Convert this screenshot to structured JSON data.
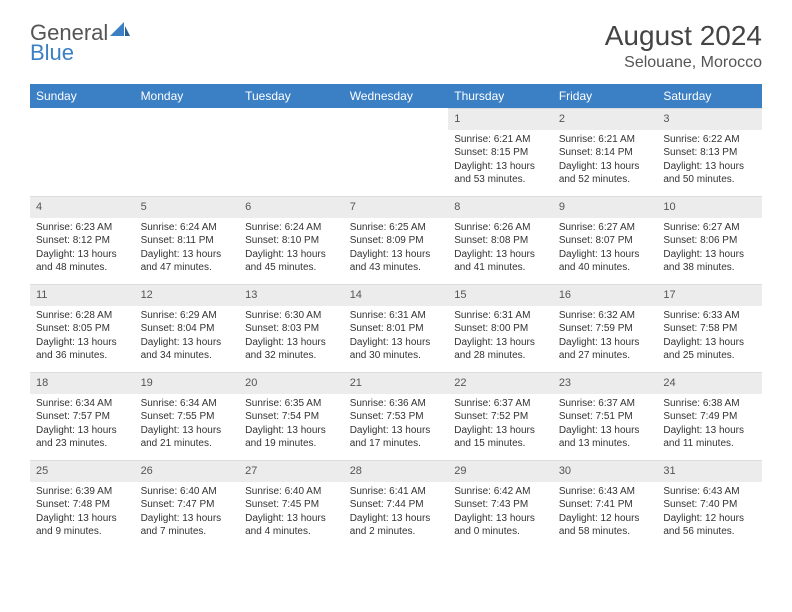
{
  "brand": {
    "word1": "General",
    "word2": "Blue"
  },
  "title": {
    "month": "August 2024",
    "location": "Selouane, Morocco"
  },
  "colors": {
    "header_bg": "#3b7fc4",
    "header_text": "#ffffff",
    "daynum_bg": "#ececec",
    "text": "#333333",
    "page_bg": "#ffffff"
  },
  "weekdays": [
    "Sunday",
    "Monday",
    "Tuesday",
    "Wednesday",
    "Thursday",
    "Friday",
    "Saturday"
  ],
  "weeks": [
    [
      null,
      null,
      null,
      null,
      {
        "n": "1",
        "sunrise": "Sunrise: 6:21 AM",
        "sunset": "Sunset: 8:15 PM",
        "daylight": "Daylight: 13 hours and 53 minutes."
      },
      {
        "n": "2",
        "sunrise": "Sunrise: 6:21 AM",
        "sunset": "Sunset: 8:14 PM",
        "daylight": "Daylight: 13 hours and 52 minutes."
      },
      {
        "n": "3",
        "sunrise": "Sunrise: 6:22 AM",
        "sunset": "Sunset: 8:13 PM",
        "daylight": "Daylight: 13 hours and 50 minutes."
      }
    ],
    [
      {
        "n": "4",
        "sunrise": "Sunrise: 6:23 AM",
        "sunset": "Sunset: 8:12 PM",
        "daylight": "Daylight: 13 hours and 48 minutes."
      },
      {
        "n": "5",
        "sunrise": "Sunrise: 6:24 AM",
        "sunset": "Sunset: 8:11 PM",
        "daylight": "Daylight: 13 hours and 47 minutes."
      },
      {
        "n": "6",
        "sunrise": "Sunrise: 6:24 AM",
        "sunset": "Sunset: 8:10 PM",
        "daylight": "Daylight: 13 hours and 45 minutes."
      },
      {
        "n": "7",
        "sunrise": "Sunrise: 6:25 AM",
        "sunset": "Sunset: 8:09 PM",
        "daylight": "Daylight: 13 hours and 43 minutes."
      },
      {
        "n": "8",
        "sunrise": "Sunrise: 6:26 AM",
        "sunset": "Sunset: 8:08 PM",
        "daylight": "Daylight: 13 hours and 41 minutes."
      },
      {
        "n": "9",
        "sunrise": "Sunrise: 6:27 AM",
        "sunset": "Sunset: 8:07 PM",
        "daylight": "Daylight: 13 hours and 40 minutes."
      },
      {
        "n": "10",
        "sunrise": "Sunrise: 6:27 AM",
        "sunset": "Sunset: 8:06 PM",
        "daylight": "Daylight: 13 hours and 38 minutes."
      }
    ],
    [
      {
        "n": "11",
        "sunrise": "Sunrise: 6:28 AM",
        "sunset": "Sunset: 8:05 PM",
        "daylight": "Daylight: 13 hours and 36 minutes."
      },
      {
        "n": "12",
        "sunrise": "Sunrise: 6:29 AM",
        "sunset": "Sunset: 8:04 PM",
        "daylight": "Daylight: 13 hours and 34 minutes."
      },
      {
        "n": "13",
        "sunrise": "Sunrise: 6:30 AM",
        "sunset": "Sunset: 8:03 PM",
        "daylight": "Daylight: 13 hours and 32 minutes."
      },
      {
        "n": "14",
        "sunrise": "Sunrise: 6:31 AM",
        "sunset": "Sunset: 8:01 PM",
        "daylight": "Daylight: 13 hours and 30 minutes."
      },
      {
        "n": "15",
        "sunrise": "Sunrise: 6:31 AM",
        "sunset": "Sunset: 8:00 PM",
        "daylight": "Daylight: 13 hours and 28 minutes."
      },
      {
        "n": "16",
        "sunrise": "Sunrise: 6:32 AM",
        "sunset": "Sunset: 7:59 PM",
        "daylight": "Daylight: 13 hours and 27 minutes."
      },
      {
        "n": "17",
        "sunrise": "Sunrise: 6:33 AM",
        "sunset": "Sunset: 7:58 PM",
        "daylight": "Daylight: 13 hours and 25 minutes."
      }
    ],
    [
      {
        "n": "18",
        "sunrise": "Sunrise: 6:34 AM",
        "sunset": "Sunset: 7:57 PM",
        "daylight": "Daylight: 13 hours and 23 minutes."
      },
      {
        "n": "19",
        "sunrise": "Sunrise: 6:34 AM",
        "sunset": "Sunset: 7:55 PM",
        "daylight": "Daylight: 13 hours and 21 minutes."
      },
      {
        "n": "20",
        "sunrise": "Sunrise: 6:35 AM",
        "sunset": "Sunset: 7:54 PM",
        "daylight": "Daylight: 13 hours and 19 minutes."
      },
      {
        "n": "21",
        "sunrise": "Sunrise: 6:36 AM",
        "sunset": "Sunset: 7:53 PM",
        "daylight": "Daylight: 13 hours and 17 minutes."
      },
      {
        "n": "22",
        "sunrise": "Sunrise: 6:37 AM",
        "sunset": "Sunset: 7:52 PM",
        "daylight": "Daylight: 13 hours and 15 minutes."
      },
      {
        "n": "23",
        "sunrise": "Sunrise: 6:37 AM",
        "sunset": "Sunset: 7:51 PM",
        "daylight": "Daylight: 13 hours and 13 minutes."
      },
      {
        "n": "24",
        "sunrise": "Sunrise: 6:38 AM",
        "sunset": "Sunset: 7:49 PM",
        "daylight": "Daylight: 13 hours and 11 minutes."
      }
    ],
    [
      {
        "n": "25",
        "sunrise": "Sunrise: 6:39 AM",
        "sunset": "Sunset: 7:48 PM",
        "daylight": "Daylight: 13 hours and 9 minutes."
      },
      {
        "n": "26",
        "sunrise": "Sunrise: 6:40 AM",
        "sunset": "Sunset: 7:47 PM",
        "daylight": "Daylight: 13 hours and 7 minutes."
      },
      {
        "n": "27",
        "sunrise": "Sunrise: 6:40 AM",
        "sunset": "Sunset: 7:45 PM",
        "daylight": "Daylight: 13 hours and 4 minutes."
      },
      {
        "n": "28",
        "sunrise": "Sunrise: 6:41 AM",
        "sunset": "Sunset: 7:44 PM",
        "daylight": "Daylight: 13 hours and 2 minutes."
      },
      {
        "n": "29",
        "sunrise": "Sunrise: 6:42 AM",
        "sunset": "Sunset: 7:43 PM",
        "daylight": "Daylight: 13 hours and 0 minutes."
      },
      {
        "n": "30",
        "sunrise": "Sunrise: 6:43 AM",
        "sunset": "Sunset: 7:41 PM",
        "daylight": "Daylight: 12 hours and 58 minutes."
      },
      {
        "n": "31",
        "sunrise": "Sunrise: 6:43 AM",
        "sunset": "Sunset: 7:40 PM",
        "daylight": "Daylight: 12 hours and 56 minutes."
      }
    ]
  ]
}
